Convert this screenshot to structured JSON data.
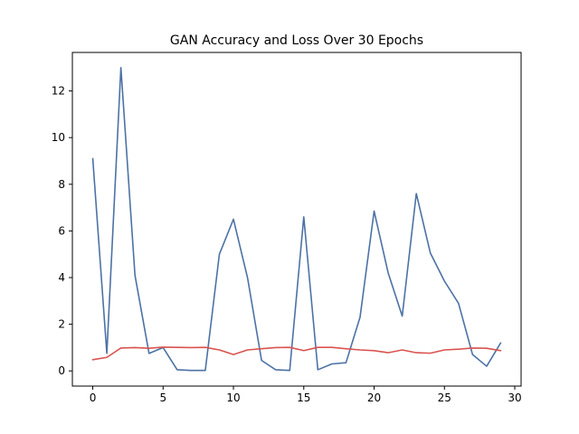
{
  "chart_data": {
    "type": "line",
    "title": "GAN Accuracy and Loss Over 30 Epochs",
    "xlabel": "",
    "ylabel": "",
    "xlim": [
      -1.45,
      30.45
    ],
    "ylim": [
      -0.65,
      13.65
    ],
    "x_ticks": [
      0,
      5,
      10,
      15,
      20,
      25,
      30
    ],
    "y_ticks": [
      0,
      2,
      4,
      6,
      8,
      10,
      12
    ],
    "grid": false,
    "legend": "none",
    "x": [
      0,
      1,
      2,
      3,
      4,
      5,
      6,
      7,
      8,
      9,
      10,
      11,
      12,
      13,
      14,
      15,
      16,
      17,
      18,
      19,
      20,
      21,
      22,
      23,
      24,
      25,
      26,
      27,
      28,
      29
    ],
    "series": [
      {
        "color": "#4c72a4",
        "values": [
          9.1,
          0.75,
          13.0,
          4.1,
          0.75,
          1.0,
          0.05,
          0.02,
          0.02,
          5.0,
          6.5,
          4.0,
          0.45,
          0.05,
          0.02,
          6.6,
          0.05,
          0.3,
          0.35,
          2.3,
          6.85,
          4.2,
          2.35,
          7.6,
          5.05,
          3.85,
          2.9,
          0.7,
          0.2,
          1.2
        ]
      },
      {
        "color": "#d9534f",
        "values": [
          0.48,
          0.58,
          0.98,
          1.0,
          0.97,
          1.02,
          1.01,
          1.0,
          1.01,
          0.9,
          0.7,
          0.9,
          0.95,
          1.0,
          1.01,
          0.87,
          1.01,
          1.01,
          0.95,
          0.9,
          0.87,
          0.78,
          0.9,
          0.78,
          0.76,
          0.9,
          0.93,
          0.98,
          0.97,
          0.87
        ]
      }
    ]
  }
}
